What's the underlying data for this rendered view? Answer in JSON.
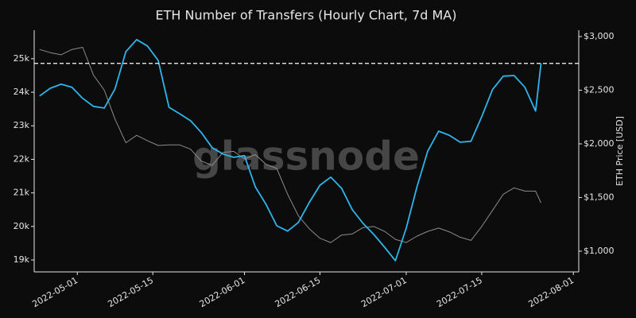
{
  "chart_data": {
    "type": "line",
    "title": "ETH Number of Transfers (Hourly Chart, 7d MA)",
    "watermark": "glassnode",
    "y2label": "ETH Price [USD]",
    "x": [
      "2022-04-24",
      "2022-04-26",
      "2022-04-28",
      "2022-04-30",
      "2022-05-02",
      "2022-05-04",
      "2022-05-06",
      "2022-05-08",
      "2022-05-10",
      "2022-05-12",
      "2022-05-14",
      "2022-05-16",
      "2022-05-18",
      "2022-05-20",
      "2022-05-22",
      "2022-05-24",
      "2022-05-26",
      "2022-05-28",
      "2022-05-30",
      "2022-06-01",
      "2022-06-03",
      "2022-06-05",
      "2022-06-07",
      "2022-06-09",
      "2022-06-11",
      "2022-06-13",
      "2022-06-15",
      "2022-06-17",
      "2022-06-19",
      "2022-06-21",
      "2022-06-23",
      "2022-06-25",
      "2022-06-27",
      "2022-06-29",
      "2022-07-01",
      "2022-07-03",
      "2022-07-05",
      "2022-07-07",
      "2022-07-09",
      "2022-07-11",
      "2022-07-13",
      "2022-07-15",
      "2022-07-17",
      "2022-07-19",
      "2022-07-21",
      "2022-07-23",
      "2022-07-25",
      "2022-07-26"
    ],
    "series": [
      {
        "name": "ETH Number of Transfers",
        "color": "#2db5ec",
        "axis": "y",
        "values": [
          23890,
          24120,
          24240,
          24150,
          23820,
          23580,
          23530,
          24100,
          25210,
          25570,
          25380,
          24950,
          23550,
          23360,
          23150,
          22800,
          22350,
          22160,
          22060,
          22110,
          21180,
          20660,
          20020,
          19860,
          20120,
          20710,
          21230,
          21470,
          21140,
          20500,
          20090,
          19760,
          19380,
          18980,
          19950,
          21180,
          22250,
          22840,
          22720,
          22510,
          22540,
          23270,
          24080,
          24480,
          24500,
          24150,
          23440,
          24860
        ]
      },
      {
        "name": "ETH Price",
        "color": "#8c8c8c",
        "axis": "y2",
        "values": [
          2880,
          2850,
          2830,
          2880,
          2900,
          2640,
          2500,
          2230,
          2010,
          2080,
          2030,
          1985,
          1990,
          1990,
          1950,
          1840,
          1800,
          1920,
          1930,
          1860,
          1900,
          1810,
          1770,
          1530,
          1330,
          1210,
          1120,
          1080,
          1150,
          1160,
          1220,
          1230,
          1185,
          1110,
          1080,
          1140,
          1185,
          1215,
          1180,
          1130,
          1100,
          1230,
          1380,
          1530,
          1590,
          1560,
          1560,
          1450
        ]
      }
    ],
    "hline": 24860,
    "xlim": [
      "2022-04-23",
      "2022-08-02"
    ],
    "xticks": [
      "2022-05-01",
      "2022-05-15",
      "2022-06-01",
      "2022-06-15",
      "2022-07-01",
      "2022-07-15",
      "2022-08-01"
    ],
    "ylim": [
      18645,
      25850
    ],
    "yticks": [
      {
        "value": 19000,
        "label": "19k"
      },
      {
        "value": 20000,
        "label": "20k"
      },
      {
        "value": 21000,
        "label": "21k"
      },
      {
        "value": 22000,
        "label": "22k"
      },
      {
        "value": 23000,
        "label": "23k"
      },
      {
        "value": 24000,
        "label": "24k"
      },
      {
        "value": 25000,
        "label": "25k"
      }
    ],
    "y2lim": [
      807,
      3059
    ],
    "y2ticks": [
      {
        "value": 1000,
        "label": "$1,000"
      },
      {
        "value": 1500,
        "label": "$1,500"
      },
      {
        "value": 2000,
        "label": "$2,000"
      },
      {
        "value": 2500,
        "label": "$2,500"
      },
      {
        "value": 3000,
        "label": "$3,000"
      }
    ]
  }
}
